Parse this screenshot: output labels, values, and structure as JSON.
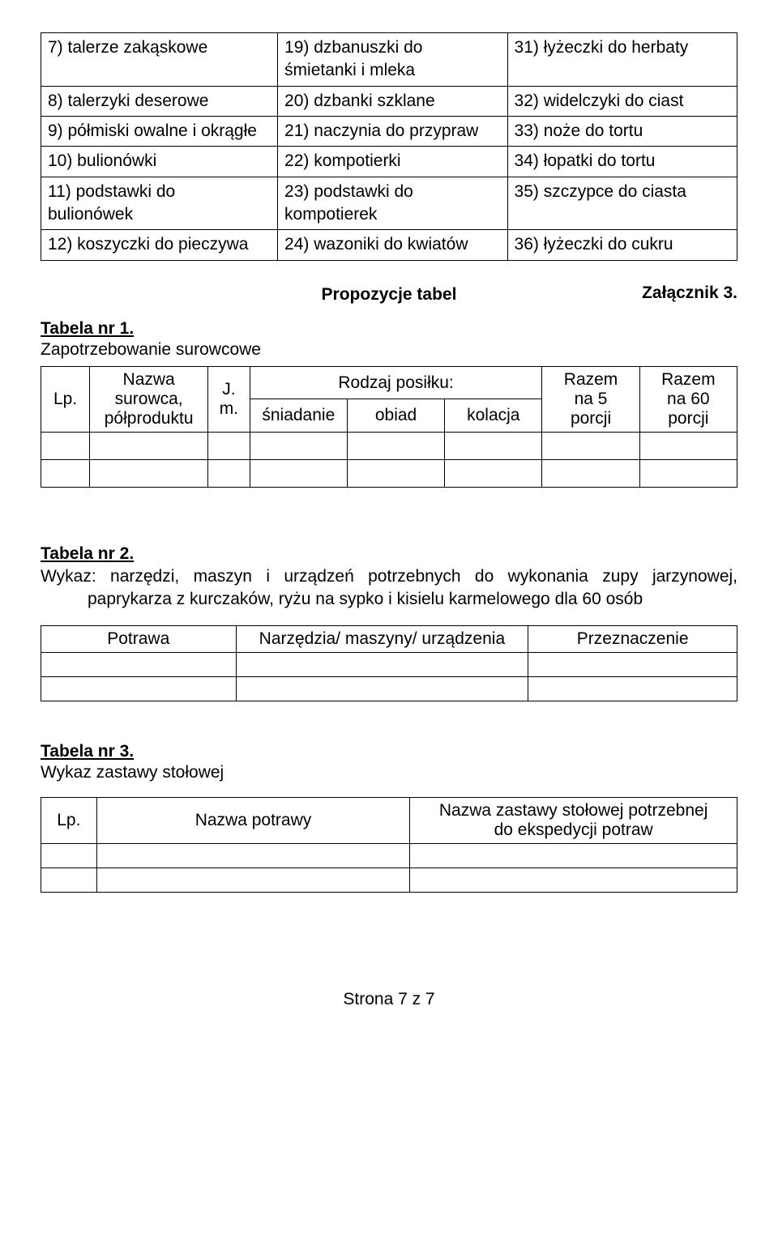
{
  "mainTable": {
    "rows": [
      [
        "7)  talerze zakąskowe",
        "19) dzbanuszki do\n      śmietanki i mleka",
        "31) łyżeczki do herbaty"
      ],
      [
        "8)  talerzyki deserowe",
        "20) dzbanki szklane",
        "32) widelczyki do ciast"
      ],
      [
        "9)  półmiski owalne i okrągłe",
        "21) naczynia do przypraw",
        "33) noże do tortu"
      ],
      [
        "10) bulionówki",
        "22) kompotierki",
        "34) łopatki do tortu"
      ],
      [
        "11) podstawki do\nbulionówek",
        "23) podstawki do\n      kompotierek",
        "35) szczypce do ciasta"
      ],
      [
        "12) koszyczki do pieczywa",
        "24) wazoniki do kwiatów",
        "36) łyżeczki do cukru"
      ]
    ]
  },
  "attachment": "Załącznik 3.",
  "proposalTitle": "Propozycje tabel",
  "tabela1": {
    "heading": "Tabela nr 1.",
    "sub": "Zapotrzebowanie surowcowe",
    "headers": {
      "lp": "Lp.",
      "nazwa": "Nazwa\nsurowca,\npółproduktu",
      "jm": "J.\nm.",
      "rodzaj": "Rodzaj posiłku:",
      "sniadanie": "śniadanie",
      "obiad": "obiad",
      "kolacja": "kolacja",
      "razem5": "Razem\nna 5\nporcji",
      "razem60": "Razem\nna 60\nporcji"
    }
  },
  "tabela2": {
    "heading": "Tabela nr 2.",
    "desc": "Wykaz: narzędzi, maszyn i urządzeń potrzebnych do wykonania zupy jarzynowej, paprykarza z kurczaków, ryżu na sypko i kisielu karmelowego dla 60 osób",
    "headers": {
      "potrawa": "Potrawa",
      "narzedzia": "Narzędzia/ maszyny/ urządzenia",
      "przeznaczenie": "Przeznaczenie"
    }
  },
  "tabela3": {
    "heading": "Tabela nr 3.",
    "sub": "Wykaz zastawy stołowej",
    "headers": {
      "lp": "Lp.",
      "nazwaPotrawy": "Nazwa potrawy",
      "nazwaZastawy": "Nazwa zastawy stołowej potrzebnej\ndo ekspedycji potraw"
    }
  },
  "footer": "Strona 7 z 7"
}
